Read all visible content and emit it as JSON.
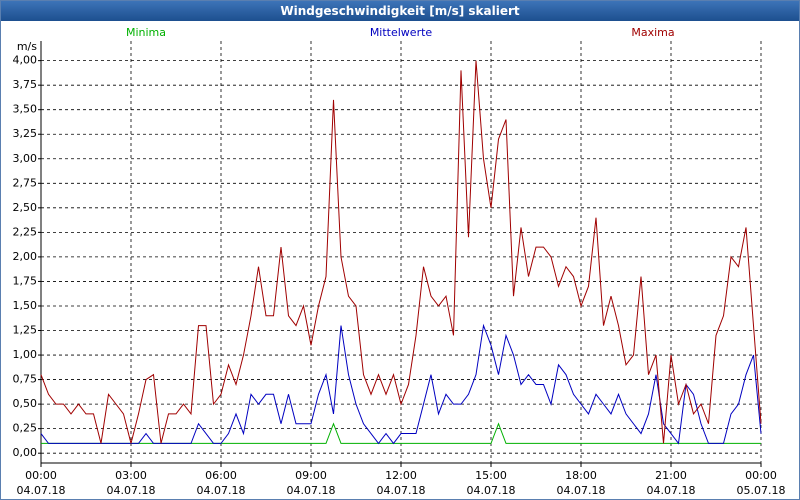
{
  "chart_data": {
    "type": "line",
    "title": "Windgeschwindigkeit [m/s] skaliert",
    "y_label": "m/s",
    "x": [
      0,
      0.25,
      0.5,
      0.75,
      1,
      1.25,
      1.5,
      1.75,
      2,
      2.25,
      2.5,
      2.75,
      3,
      3.25,
      3.5,
      3.75,
      4,
      4.25,
      4.5,
      4.75,
      5,
      5.25,
      5.5,
      5.75,
      6,
      6.25,
      6.5,
      6.75,
      7,
      7.25,
      7.5,
      7.75,
      8,
      8.25,
      8.5,
      8.75,
      9,
      9.25,
      9.5,
      9.75,
      10,
      10.25,
      10.5,
      10.75,
      11,
      11.25,
      11.5,
      11.75,
      12,
      12.25,
      12.5,
      12.75,
      13,
      13.25,
      13.5,
      13.75,
      14,
      14.25,
      14.5,
      14.75,
      15,
      15.25,
      15.5,
      15.75,
      16,
      16.25,
      16.5,
      16.75,
      17,
      17.25,
      17.5,
      17.75,
      18,
      18.25,
      18.5,
      18.75,
      19,
      19.25,
      19.5,
      19.75,
      20,
      20.25,
      20.5,
      20.75,
      21,
      21.25,
      21.5,
      21.75,
      22,
      22.25,
      22.5,
      22.75,
      23,
      23.25,
      23.5,
      23.75,
      24
    ],
    "series": [
      {
        "name": "Minima",
        "color": "#00b000",
        "values": [
          0.1,
          0.1,
          0.1,
          0.1,
          0.1,
          0.1,
          0.1,
          0.1,
          0.1,
          0.1,
          0.1,
          0.1,
          0.1,
          0.1,
          0.1,
          0.1,
          0.1,
          0.1,
          0.1,
          0.1,
          0.1,
          0.1,
          0.1,
          0.1,
          0.1,
          0.1,
          0.1,
          0.1,
          0.1,
          0.1,
          0.1,
          0.1,
          0.1,
          0.1,
          0.1,
          0.1,
          0.1,
          0.1,
          0.1,
          0.3,
          0.1,
          0.1,
          0.1,
          0.1,
          0.1,
          0.1,
          0.1,
          0.1,
          0.1,
          0.1,
          0.1,
          0.1,
          0.1,
          0.1,
          0.1,
          0.1,
          0.1,
          0.1,
          0.1,
          0.1,
          0.1,
          0.3,
          0.1,
          0.1,
          0.1,
          0.1,
          0.1,
          0.1,
          0.1,
          0.1,
          0.1,
          0.1,
          0.1,
          0.1,
          0.1,
          0.1,
          0.1,
          0.1,
          0.1,
          0.1,
          0.1,
          0.1,
          0.1,
          0.1,
          0.1,
          0.1,
          0.1,
          0.1,
          0.1,
          0.1,
          0.1,
          0.1,
          0.1,
          0.1,
          0.1,
          0.1,
          0.1
        ]
      },
      {
        "name": "Mittelwerte",
        "color": "#0000c0",
        "values": [
          0.2,
          0.1,
          0.1,
          0.1,
          0.1,
          0.1,
          0.1,
          0.1,
          0.1,
          0.1,
          0.1,
          0.1,
          0.1,
          0.1,
          0.2,
          0.1,
          0.1,
          0.1,
          0.1,
          0.1,
          0.1,
          0.3,
          0.2,
          0.1,
          0.1,
          0.2,
          0.4,
          0.2,
          0.6,
          0.5,
          0.6,
          0.6,
          0.3,
          0.6,
          0.3,
          0.3,
          0.3,
          0.6,
          0.8,
          0.4,
          1.3,
          0.8,
          0.5,
          0.3,
          0.2,
          0.1,
          0.2,
          0.1,
          0.2,
          0.2,
          0.2,
          0.5,
          0.8,
          0.4,
          0.6,
          0.5,
          0.5,
          0.6,
          0.8,
          1.3,
          1.1,
          0.8,
          1.2,
          1.0,
          0.7,
          0.8,
          0.7,
          0.7,
          0.5,
          0.9,
          0.8,
          0.6,
          0.5,
          0.4,
          0.6,
          0.5,
          0.4,
          0.6,
          0.4,
          0.3,
          0.2,
          0.4,
          0.8,
          0.3,
          0.2,
          0.1,
          0.7,
          0.6,
          0.3,
          0.1,
          0.1,
          0.1,
          0.4,
          0.5,
          0.8,
          1.0,
          0.2
        ]
      },
      {
        "name": "Maxima",
        "color": "#a00000",
        "values": [
          0.8,
          0.6,
          0.5,
          0.5,
          0.4,
          0.5,
          0.4,
          0.4,
          0.1,
          0.6,
          0.5,
          0.4,
          0.1,
          0.4,
          0.75,
          0.8,
          0.1,
          0.4,
          0.4,
          0.5,
          0.4,
          1.3,
          1.3,
          0.5,
          0.6,
          0.9,
          0.7,
          1.0,
          1.4,
          1.9,
          1.4,
          1.4,
          2.1,
          1.4,
          1.3,
          1.5,
          1.1,
          1.5,
          1.8,
          3.6,
          2.0,
          1.6,
          1.5,
          0.8,
          0.6,
          0.8,
          0.6,
          0.8,
          0.5,
          0.7,
          1.2,
          1.9,
          1.6,
          1.5,
          1.6,
          1.2,
          3.9,
          2.2,
          4.0,
          3.0,
          2.5,
          3.2,
          3.4,
          1.6,
          2.3,
          1.8,
          2.1,
          2.1,
          2.0,
          1.7,
          1.9,
          1.8,
          1.5,
          1.7,
          2.4,
          1.3,
          1.6,
          1.3,
          0.9,
          1.0,
          1.8,
          0.8,
          1.0,
          0.1,
          1.0,
          0.5,
          0.7,
          0.4,
          0.5,
          0.3,
          1.2,
          1.4,
          2.0,
          1.9,
          2.3,
          1.3,
          0.3
        ]
      }
    ],
    "xlim": [
      0,
      24
    ],
    "xticks": [
      {
        "value": 0,
        "label": "00:00"
      },
      {
        "value": 3,
        "label": "03:00"
      },
      {
        "value": 6,
        "label": "06:00"
      },
      {
        "value": 9,
        "label": "09:00"
      },
      {
        "value": 12,
        "label": "12:00"
      },
      {
        "value": 15,
        "label": "15:00"
      },
      {
        "value": 18,
        "label": "18:00"
      },
      {
        "value": 21,
        "label": "21:00"
      },
      {
        "value": 24,
        "label": "00:00"
      }
    ],
    "x_dates": [
      "04.07.18",
      "04.07.18",
      "04.07.18",
      "04.07.18",
      "04.07.18",
      "04.07.18",
      "04.07.18",
      "04.07.18",
      "05.07.18"
    ],
    "ylim": [
      -0.1,
      4.2
    ],
    "yticks": [
      {
        "value": 0,
        "label": "0,00"
      },
      {
        "value": 0.25,
        "label": "0,25"
      },
      {
        "value": 0.5,
        "label": "0,50"
      },
      {
        "value": 0.75,
        "label": "0,75"
      },
      {
        "value": 1,
        "label": "1,00"
      },
      {
        "value": 1.25,
        "label": "1,25"
      },
      {
        "value": 1.5,
        "label": "1,50"
      },
      {
        "value": 1.75,
        "label": "1,75"
      },
      {
        "value": 2,
        "label": "2,00"
      },
      {
        "value": 2.25,
        "label": "2,25"
      },
      {
        "value": 2.5,
        "label": "2,50"
      },
      {
        "value": 2.75,
        "label": "2,75"
      },
      {
        "value": 3,
        "label": "3,00"
      },
      {
        "value": 3.25,
        "label": "3,25"
      },
      {
        "value": 3.5,
        "label": "3,50"
      },
      {
        "value": 3.75,
        "label": "3,75"
      },
      {
        "value": 4,
        "label": "4,00"
      }
    ],
    "grid": true
  }
}
